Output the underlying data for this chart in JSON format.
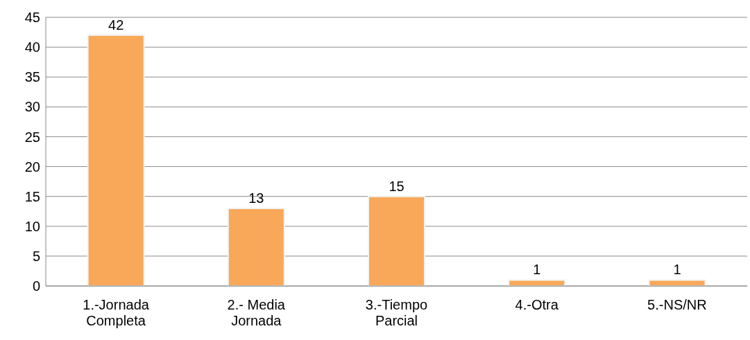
{
  "chart_data": {
    "type": "bar",
    "categories": [
      "1.-Jornada Completa",
      "2.- Media Jornada",
      "3.-Tiempo Parcial",
      "4.-Otra",
      "5.-NS/NR"
    ],
    "values": [
      42,
      13,
      15,
      1,
      1
    ],
    "color": "#f9a85a",
    "ylim": [
      0,
      45
    ],
    "yticks": [
      0,
      5,
      10,
      15,
      20,
      25,
      30,
      35,
      40,
      45
    ],
    "grid": "y",
    "data_labels": true
  }
}
